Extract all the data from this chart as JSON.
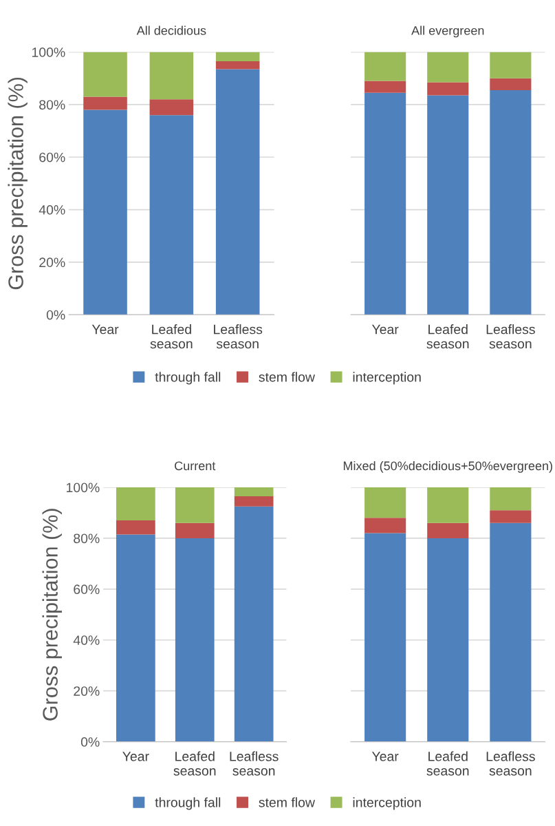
{
  "chart_data": [
    {
      "type": "bar",
      "stacked": true,
      "title": "All decidious",
      "ylabel": "Gross precipitation (%)",
      "categories": [
        "Year",
        "Leafed\nseason",
        "Leafless\nseason"
      ],
      "ylim": [
        0,
        100
      ],
      "yticks": [
        {
          "value": 0,
          "label": "0%"
        },
        {
          "value": 20,
          "label": "20%"
        },
        {
          "value": 40,
          "label": "40%"
        },
        {
          "value": 60,
          "label": "60%"
        },
        {
          "value": 80,
          "label": "80%"
        },
        {
          "value": 100,
          "label": "100%"
        }
      ],
      "grid": "y",
      "legend": "bottom",
      "series": [
        {
          "name": "through fall",
          "color": "#4f81bd",
          "values": [
            78,
            76,
            93.5
          ]
        },
        {
          "name": "stem flow",
          "color": "#c0504d",
          "values": [
            5,
            6,
            3
          ]
        },
        {
          "name": "interception",
          "color": "#9bbb59",
          "values": [
            17,
            18,
            3.5
          ]
        }
      ]
    },
    {
      "type": "bar",
      "stacked": true,
      "title": "All evergreen",
      "categories": [
        "Year",
        "Leafed\nseason",
        "Leafless\nseason"
      ],
      "ylim": [
        0,
        100
      ],
      "yticks": [
        {
          "value": 0,
          "label": null
        },
        {
          "value": 20,
          "label": null
        },
        {
          "value": 40,
          "label": null
        },
        {
          "value": 60,
          "label": null
        },
        {
          "value": 80,
          "label": null
        },
        {
          "value": 100,
          "label": null
        }
      ],
      "grid": "y",
      "tick_labels": "x",
      "series": [
        {
          "color": "#4f81bd",
          "values": [
            84.5,
            83.5,
            85.5
          ]
        },
        {
          "color": "#c0504d",
          "values": [
            4.5,
            5,
            4.5
          ]
        },
        {
          "color": "#9bbb59",
          "values": [
            11,
            11.5,
            10
          ]
        }
      ]
    },
    {
      "type": "bar",
      "stacked": true,
      "title": "Current",
      "ylabel": "Gross precipitation (%)",
      "categories": [
        "Year",
        "Leafed\nseason",
        "Leafless\nseason"
      ],
      "ylim": [
        0,
        100
      ],
      "yticks": [
        {
          "value": 0,
          "label": "0%"
        },
        {
          "value": 20,
          "label": "20%"
        },
        {
          "value": 40,
          "label": "40%"
        },
        {
          "value": 60,
          "label": "60%"
        },
        {
          "value": 80,
          "label": "80%"
        },
        {
          "value": 100,
          "label": "100%"
        }
      ],
      "grid": "y",
      "legend": "bottom",
      "series": [
        {
          "name": "through fall",
          "color": "#4f81bd",
          "values": [
            81.5,
            80,
            92.5
          ]
        },
        {
          "name": "stem flow",
          "color": "#c0504d",
          "values": [
            5.5,
            6,
            4
          ]
        },
        {
          "name": "interception",
          "color": "#9bbb59",
          "values": [
            13,
            14,
            3.5
          ]
        }
      ]
    },
    {
      "type": "bar",
      "stacked": true,
      "title": "Mixed (50%decidious+50%evergreen)",
      "categories": [
        "Year",
        "Leafed\nseason",
        "Leafless\nseason"
      ],
      "ylim": [
        0,
        100
      ],
      "yticks": [
        {
          "value": 0,
          "label": null
        },
        {
          "value": 20,
          "label": null
        },
        {
          "value": 40,
          "label": null
        },
        {
          "value": 60,
          "label": null
        },
        {
          "value": 80,
          "label": null
        },
        {
          "value": 100,
          "label": null
        }
      ],
      "grid": "y",
      "tick_labels": "x",
      "series": [
        {
          "color": "#4f81bd",
          "values": [
            82,
            80,
            86
          ]
        },
        {
          "color": "#c0504d",
          "values": [
            6,
            6,
            5
          ]
        },
        {
          "color": "#9bbb59",
          "values": [
            12,
            14,
            9
          ]
        }
      ]
    }
  ]
}
